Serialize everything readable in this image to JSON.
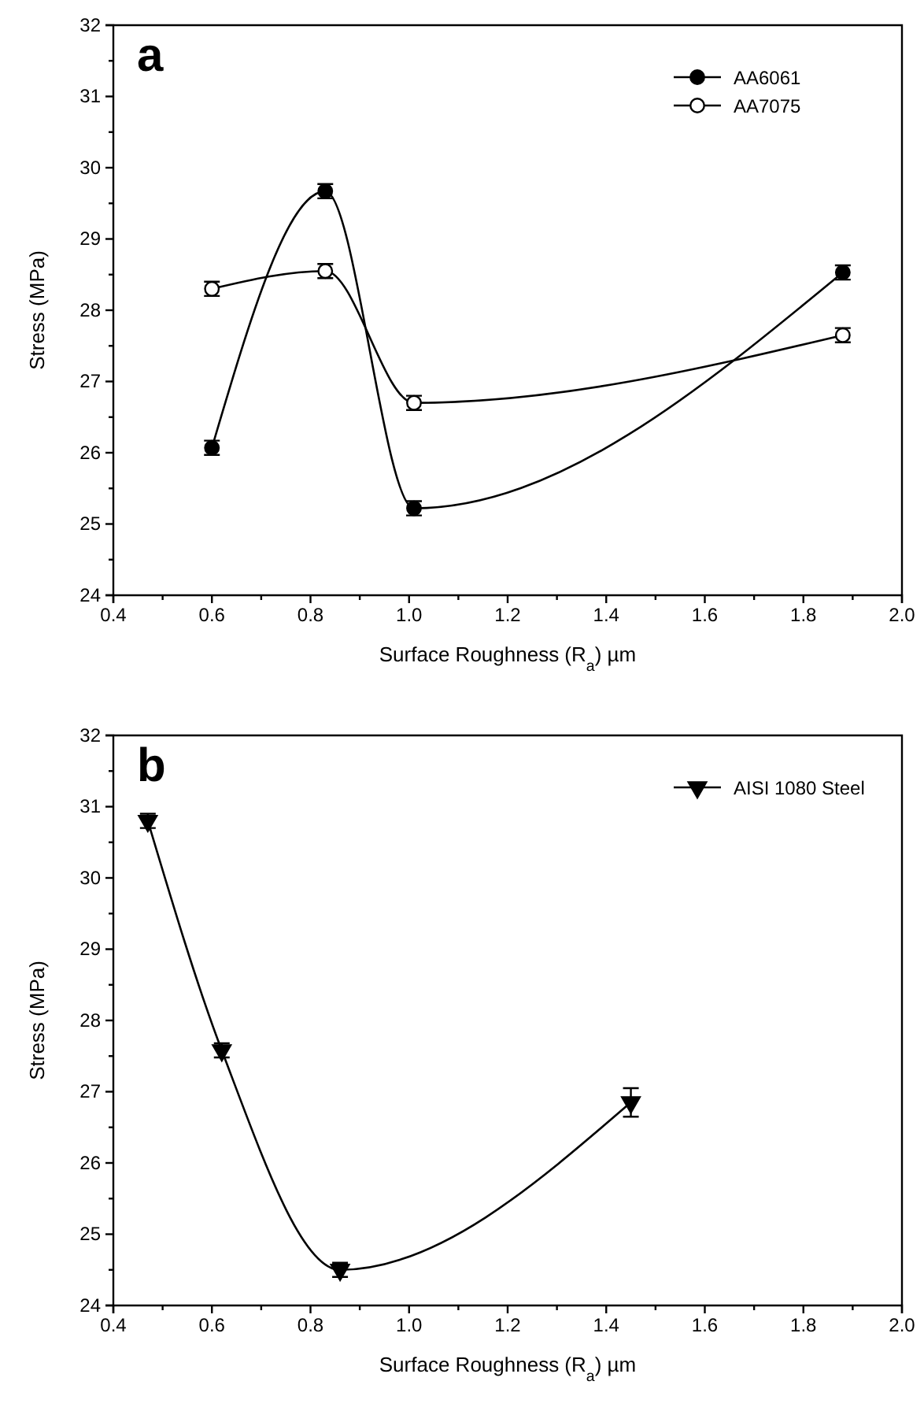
{
  "chart_data": [
    {
      "type": "line",
      "title": "a",
      "xlabel": "Surface Roughness (R$_{a}$) µm",
      "ylabel": "Stress (MPa)",
      "xlim": [
        0.4,
        2.0
      ],
      "xticks": [
        0.4,
        {
          "value": 0.5,
          "label": null
        },
        0.6,
        {
          "value": 0.7,
          "label": null
        },
        0.8,
        {
          "value": 0.9,
          "label": null
        },
        {
          "value": 1.0,
          "label": "1.0"
        },
        {
          "value": 1.1,
          "label": null
        },
        1.2,
        {
          "value": 1.3,
          "label": null
        },
        1.4,
        {
          "value": 1.5,
          "label": null
        },
        1.6,
        {
          "value": 1.7,
          "label": null
        },
        1.8,
        {
          "value": 1.9,
          "label": null
        },
        {
          "value": 2.0,
          "label": "2.0"
        }
      ],
      "ylim": [
        24,
        32
      ],
      "yticks": [
        24,
        {
          "value": 24.5,
          "label": null
        },
        25,
        {
          "value": 25.5,
          "label": null
        },
        26,
        {
          "value": 26.5,
          "label": null
        },
        27,
        {
          "value": 27.5,
          "label": null
        },
        28,
        {
          "value": 28.5,
          "label": null
        },
        29,
        {
          "value": 29.5,
          "label": null
        },
        30,
        {
          "value": 30.5,
          "label": null
        },
        31,
        {
          "value": 31.5,
          "label": null
        },
        32
      ],
      "marker": "circle",
      "legend": "top right",
      "grid": false,
      "series": [
        {
          "name": "AA6061",
          "color": "#000000",
          "x": [
            0.6,
            0.83,
            1.01,
            1.88
          ],
          "values": [
            26.07,
            29.67,
            25.22,
            28.53
          ],
          "errors": [
            0.1,
            0.1,
            0.1,
            0.1
          ]
        },
        {
          "name": "AA7075",
          "color": "#ffffff",
          "x": [
            0.6,
            0.83,
            1.01,
            1.88
          ],
          "values": [
            28.3,
            28.55,
            26.7,
            27.65
          ],
          "errors": [
            0.1,
            0.1,
            0.1,
            0.1
          ]
        }
      ]
    },
    {
      "type": "line",
      "title": "b",
      "xlabel": "Surface Roughness (R$_{a}$) µm",
      "ylabel": "Stress (MPa)",
      "xlim": [
        0.4,
        2.0
      ],
      "xticks": [
        0.4,
        {
          "value": 0.5,
          "label": null
        },
        0.6,
        {
          "value": 0.7,
          "label": null
        },
        0.8,
        {
          "value": 0.9,
          "label": null
        },
        {
          "value": 1.0,
          "label": "1.0"
        },
        {
          "value": 1.1,
          "label": null
        },
        1.2,
        {
          "value": 1.3,
          "label": null
        },
        1.4,
        {
          "value": 1.5,
          "label": null
        },
        1.6,
        {
          "value": 1.7,
          "label": null
        },
        1.8,
        {
          "value": 1.9,
          "label": null
        },
        {
          "value": 2.0,
          "label": "2.0"
        }
      ],
      "ylim": [
        24,
        32
      ],
      "yticks": [
        24,
        {
          "value": 24.5,
          "label": null
        },
        25,
        {
          "value": 25.5,
          "label": null
        },
        26,
        {
          "value": 26.5,
          "label": null
        },
        27,
        {
          "value": 27.5,
          "label": null
        },
        28,
        {
          "value": 28.5,
          "label": null
        },
        29,
        {
          "value": 29.5,
          "label": null
        },
        30,
        {
          "value": 30.5,
          "label": null
        },
        31,
        {
          "value": 31.5,
          "label": null
        },
        32
      ],
      "marker": "triangle",
      "legend": "top right",
      "grid": false,
      "series": [
        {
          "name": "AISI 1080 Steel",
          "color": "#000000",
          "x": [
            0.47,
            0.62,
            0.86,
            1.45
          ],
          "values": [
            30.8,
            27.58,
            24.5,
            26.85
          ],
          "errors": [
            0.1,
            0.1,
            0.1,
            0.2
          ]
        }
      ]
    }
  ]
}
